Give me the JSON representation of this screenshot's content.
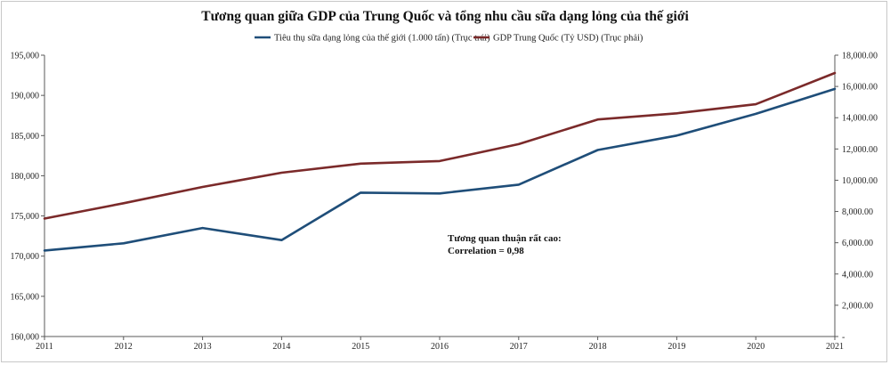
{
  "colors": {
    "consumption_line": "#1f4e79",
    "gdp_line": "#7b2a2a",
    "axis": "#595959",
    "text": "#222222"
  },
  "chart_data": {
    "type": "line",
    "title": "Tương quan giữa GDP của Trung Quốc và tổng nhu cầu sữa dạng lỏng của thế giới",
    "categories": [
      "2011",
      "2012",
      "2013",
      "2014",
      "2015",
      "2016",
      "2017",
      "2018",
      "2019",
      "2020",
      "2021"
    ],
    "series": [
      {
        "name": "Tiêu thụ sữa dạng lỏng của thế giới (1.000 tấn) (Trục trái)",
        "axis": "left",
        "color": "#1f4e79",
        "values": [
          170700,
          171600,
          173500,
          172000,
          177900,
          177800,
          178900,
          183200,
          185000,
          187700,
          190800
        ]
      },
      {
        "name": "GDP Trung Quốc (Tỷ USD) (Trục phải)",
        "axis": "right",
        "color": "#7b2a2a",
        "values": [
          7550,
          8530,
          9570,
          10480,
          11060,
          11230,
          12310,
          13890,
          14280,
          14860,
          16860
        ]
      }
    ],
    "left_axis": {
      "min": 160000,
      "max": 195000,
      "step": 5000,
      "tick_labels": [
        "160,000",
        "165,000",
        "170,000",
        "175,000",
        "180,000",
        "185,000",
        "190,000",
        "195,000"
      ]
    },
    "right_axis": {
      "min": 0,
      "max": 18000,
      "step": 2000,
      "tick_labels": [
        "-",
        "2,000.00",
        "4,000.00",
        "6,000.00",
        "8,000.00",
        "10,000.00",
        "12,000.00",
        "14,000.00",
        "16,000.00",
        "18,000.00"
      ]
    },
    "legend_position": "top-center",
    "grid": false,
    "annotation": {
      "line1": "Tương quan thuận rất cao:",
      "line2": "Correlation = 0,98"
    }
  }
}
